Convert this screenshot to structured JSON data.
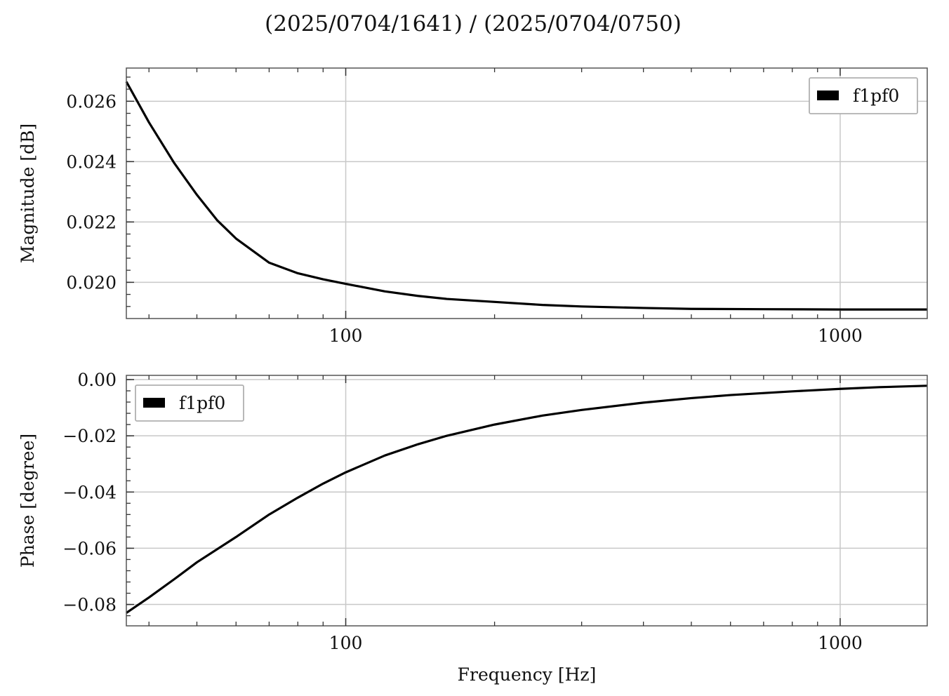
{
  "figure_title": "(2025/0704/1641) / (2025/0704/0750)",
  "chart_data": [
    {
      "type": "line",
      "title": "",
      "xlabel": "",
      "ylabel": "Magnitude [dB]",
      "xscale": "log",
      "xlim": [
        36,
        1500
      ],
      "ylim": [
        0.0188,
        0.0271
      ],
      "grid": true,
      "legend_position": "upper right",
      "xticks": [
        {
          "value": 100,
          "label": "100"
        },
        {
          "value": 1000,
          "label": "1000"
        }
      ],
      "yticks": [
        {
          "value": 0.02,
          "label": "0.020"
        },
        {
          "value": 0.022,
          "label": "0.022"
        },
        {
          "value": 0.024,
          "label": "0.024"
        },
        {
          "value": 0.026,
          "label": "0.026"
        }
      ],
      "series": [
        {
          "name": "f1pf0",
          "color": "#000000",
          "x": [
            36,
            40,
            45,
            50,
            55,
            60,
            70,
            80,
            90,
            100,
            120,
            140,
            160,
            200,
            250,
            300,
            400,
            500,
            700,
            1000,
            1500
          ],
          "y": [
            0.02665,
            0.0253,
            0.02395,
            0.0229,
            0.02205,
            0.02145,
            0.02065,
            0.0203,
            0.0201,
            0.01995,
            0.0197,
            0.01955,
            0.01945,
            0.01935,
            0.01925,
            0.0192,
            0.01915,
            0.01912,
            0.01911,
            0.0191,
            0.0191
          ]
        }
      ]
    },
    {
      "type": "line",
      "title": "",
      "xlabel": "Frequency [Hz]",
      "ylabel": "Phase [degree]",
      "xscale": "log",
      "xlim": [
        36,
        1500
      ],
      "ylim": [
        -0.0876,
        0.0015
      ],
      "grid": true,
      "legend_position": "upper left",
      "xticks": [
        {
          "value": 100,
          "label": "100"
        },
        {
          "value": 1000,
          "label": "1000"
        }
      ],
      "yticks": [
        {
          "value": -0.08,
          "label": "−0.08"
        },
        {
          "value": -0.06,
          "label": "−0.06"
        },
        {
          "value": -0.04,
          "label": "−0.04"
        },
        {
          "value": -0.02,
          "label": "−0.02"
        },
        {
          "value": 0.0,
          "label": "0.00"
        }
      ],
      "series": [
        {
          "name": "f1pf0",
          "color": "#000000",
          "x": [
            36,
            40,
            45,
            50,
            60,
            70,
            80,
            90,
            100,
            120,
            140,
            160,
            200,
            250,
            300,
            400,
            500,
            600,
            800,
            1000,
            1200,
            1500
          ],
          "y": [
            -0.083,
            -0.0775,
            -0.071,
            -0.065,
            -0.056,
            -0.048,
            -0.042,
            -0.037,
            -0.033,
            -0.027,
            -0.023,
            -0.02,
            -0.016,
            -0.0128,
            -0.0108,
            -0.0082,
            -0.0066,
            -0.0055,
            -0.0042,
            -0.0033,
            -0.0027,
            -0.0022
          ]
        }
      ]
    }
  ]
}
